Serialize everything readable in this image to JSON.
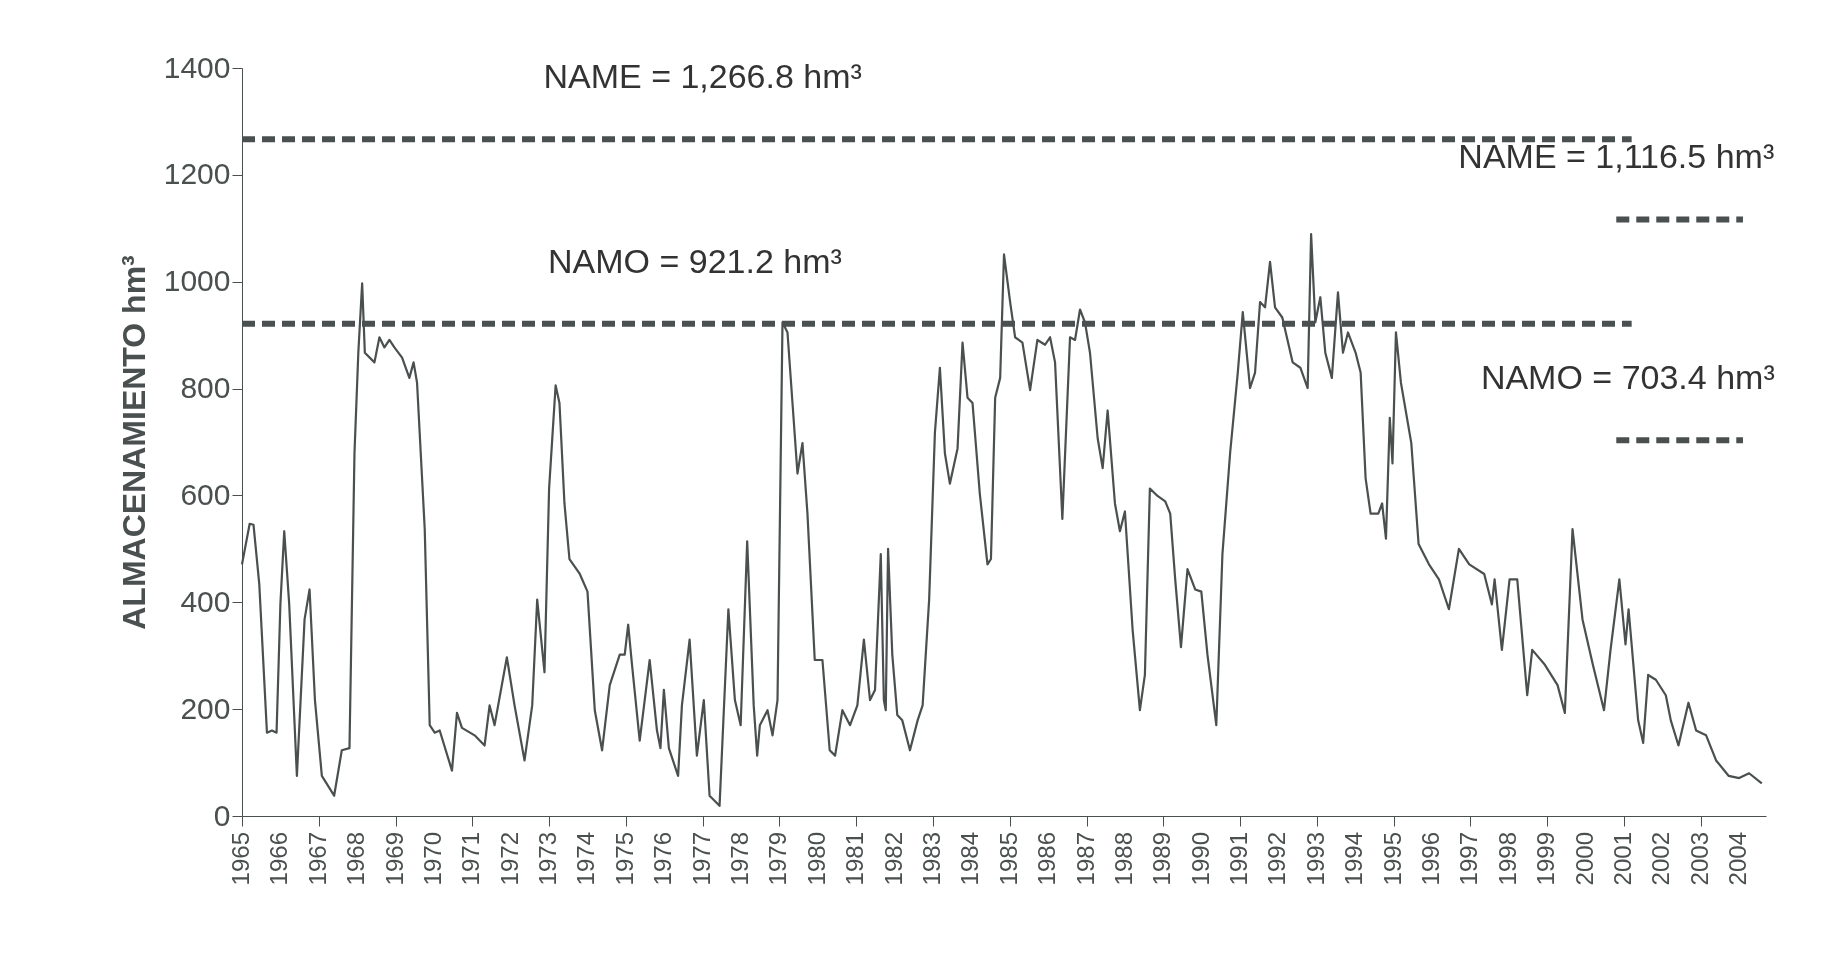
{
  "chart_data": {
    "type": "line",
    "ylabel": "ALMACENAMIENTO hm³",
    "xlim": [
      1965,
      2004.7
    ],
    "xticks": [
      1965,
      1966,
      1967,
      1968,
      1969,
      1970,
      1971,
      1972,
      1973,
      1974,
      1975,
      1976,
      1977,
      1978,
      1979,
      1980,
      1981,
      1982,
      1983,
      1984,
      1985,
      1986,
      1987,
      1988,
      1989,
      1990,
      1991,
      1992,
      1993,
      1994,
      1995,
      1996,
      1997,
      1998,
      1999,
      2000,
      2001,
      2002,
      2003,
      2004
    ],
    "ylim": [
      0,
      1400
    ],
    "yticks": [
      0,
      200,
      400,
      600,
      800,
      1000,
      1200,
      1400
    ],
    "grid": false,
    "series": [
      {
        "color": "#4a4f4f",
        "line_style": "solid",
        "x": [
          1965.0,
          1965.2,
          1965.3,
          1965.45,
          1965.65,
          1965.78,
          1965.9,
          1966.0,
          1966.1,
          1966.23,
          1966.43,
          1966.63,
          1966.76,
          1966.9,
          1967.08,
          1967.4,
          1967.6,
          1967.8,
          1967.93,
          1968.03,
          1968.13,
          1968.2,
          1968.45,
          1968.58,
          1968.71,
          1968.84,
          1968.97,
          1969.17,
          1969.36,
          1969.47,
          1969.56,
          1969.76,
          1969.89,
          1970.02,
          1970.15,
          1970.47,
          1970.6,
          1970.73,
          1971.06,
          1971.32,
          1971.45,
          1971.58,
          1971.9,
          1972.1,
          1972.36,
          1972.56,
          1972.69,
          1972.88,
          1973.0,
          1973.17,
          1973.27,
          1973.4,
          1973.53,
          1973.8,
          1974.0,
          1974.19,
          1974.38,
          1974.58,
          1974.84,
          1974.97,
          1975.06,
          1975.16,
          1975.36,
          1975.62,
          1975.81,
          1975.9,
          1975.99,
          1976.12,
          1976.36,
          1976.46,
          1976.66,
          1976.85,
          1977.03,
          1977.18,
          1977.44,
          1977.67,
          1977.84,
          1977.99,
          1978.16,
          1978.33,
          1978.42,
          1978.49,
          1978.69,
          1978.82,
          1978.95,
          1979.08,
          1979.21,
          1979.34,
          1979.47,
          1979.6,
          1979.73,
          1979.92,
          1980.12,
          1980.31,
          1980.45,
          1980.64,
          1980.84,
          1981.03,
          1981.2,
          1981.36,
          1981.49,
          1981.64,
          1981.72,
          1981.77,
          1981.83,
          1981.94,
          1982.07,
          1982.2,
          1982.4,
          1982.6,
          1982.73,
          1982.9,
          1983.05,
          1983.18,
          1983.31,
          1983.44,
          1983.64,
          1983.77,
          1983.9,
          1984.03,
          1984.22,
          1984.42,
          1984.51,
          1984.62,
          1984.75,
          1984.85,
          1985.01,
          1985.14,
          1985.33,
          1985.53,
          1985.72,
          1985.92,
          1986.05,
          1986.18,
          1986.37,
          1986.57,
          1986.7,
          1986.83,
          1986.96,
          1987.09,
          1987.29,
          1987.42,
          1987.55,
          1987.74,
          1987.87,
          1988.0,
          1988.2,
          1988.39,
          1988.52,
          1988.65,
          1988.85,
          1989.05,
          1989.18,
          1989.31,
          1989.46,
          1989.63,
          1989.83,
          1989.99,
          1990.15,
          1990.38,
          1990.54,
          1990.74,
          1990.94,
          1991.07,
          1991.26,
          1991.39,
          1991.52,
          1991.65,
          1991.78,
          1991.91,
          1992.1,
          1992.37,
          1992.57,
          1992.76,
          1992.85,
          1992.96,
          1993.09,
          1993.22,
          1993.39,
          1993.55,
          1993.68,
          1993.81,
          1994.01,
          1994.14,
          1994.27,
          1994.4,
          1994.6,
          1994.7,
          1994.8,
          1994.9,
          1994.97,
          1995.06,
          1995.19,
          1995.46,
          1995.65,
          1995.92,
          1996.18,
          1996.44,
          1996.7,
          1996.97,
          1997.36,
          1997.56,
          1997.63,
          1997.82,
          1998.02,
          1998.22,
          1998.48,
          1998.61,
          1998.94,
          1999.27,
          1999.46,
          1999.66,
          1999.92,
          2000.19,
          2000.48,
          2000.65,
          2000.88,
          2001.04,
          2001.12,
          2001.2,
          2001.37,
          2001.5,
          2001.63,
          2001.83,
          2002.09,
          2002.22,
          2002.42,
          2002.68,
          2002.88,
          2003.14,
          2003.4,
          2003.73,
          2004.0,
          2004.26,
          2004.59
        ],
        "values": [
          471,
          547,
          545,
          434,
          156,
          160,
          156,
          396,
          533,
          396,
          75,
          368,
          424,
          217,
          75,
          38,
          123,
          127,
          679,
          867,
          997,
          867,
          849,
          896,
          877,
          891,
          877,
          858,
          820,
          849,
          811,
          537,
          170,
          156,
          160,
          85,
          193,
          165,
          151,
          132,
          207,
          170,
          297,
          207,
          104,
          207,
          405,
          269,
          613,
          806,
          773,
          585,
          481,
          453,
          420,
          198,
          123,
          245,
          302,
          302,
          358,
          283,
          141,
          292,
          160,
          127,
          236,
          127,
          75,
          207,
          330,
          113,
          217,
          38,
          19,
          387,
          217,
          170,
          514,
          207,
          113,
          170,
          198,
          151,
          217,
          924,
          905,
          773,
          641,
          698,
          566,
          292,
          292,
          123,
          113,
          198,
          170,
          207,
          330,
          217,
          236,
          490,
          217,
          198,
          500,
          302,
          189,
          179,
          123,
          179,
          207,
          405,
          717,
          839,
          679,
          622,
          688,
          886,
          783,
          773,
          603,
          471,
          481,
          783,
          820,
          1051,
          962,
          896,
          886,
          797,
          891,
          882,
          896,
          849,
          556,
          896,
          891,
          948,
          924,
          867,
          707,
          651,
          759,
          585,
          533,
          570,
          349,
          198,
          264,
          613,
          599,
          589,
          566,
          443,
          316,
          462,
          424,
          420,
          302,
          170,
          490,
          679,
          830,
          943,
          801,
          830,
          962,
          952,
          1037,
          952,
          933,
          849,
          839,
          801,
          1089,
          924,
          971,
          867,
          820,
          980,
          867,
          905,
          867,
          830,
          632,
          566,
          566,
          585,
          519,
          745,
          660,
          905,
          811,
          698,
          509,
          471,
          443,
          387,
          500,
          471,
          453,
          396,
          443,
          311,
          443,
          443,
          226,
          311,
          283,
          245,
          193,
          537,
          368,
          283,
          198,
          311,
          443,
          321,
          387,
          321,
          179,
          137,
          264,
          255,
          226,
          179,
          132,
          212,
          160,
          151,
          104,
          75,
          71,
          80,
          61
        ]
      },
      {
        "color": "#4a4f4f",
        "line_style": "dashed",
        "x": [
          1965,
          2001.2
        ],
        "values": [
          1266.8,
          1266.8
        ]
      },
      {
        "color": "#4a4f4f",
        "line_style": "dashed",
        "x": [
          1965,
          2001.2
        ],
        "values": [
          921.2,
          921.2
        ]
      },
      {
        "color": "#4a4f4f",
        "line_style": "dashed",
        "x": [
          2000.8,
          2004.1
        ],
        "values": [
          1116.5,
          1116.5
        ]
      },
      {
        "color": "#4a4f4f",
        "line_style": "dashed",
        "x": [
          2000.8,
          2004.1
        ],
        "values": [
          703.4,
          703.4
        ]
      }
    ],
    "annotations": [
      {
        "text": "NAME = 1,266.8 hm³",
        "x": 1977,
        "y": 1266.8
      },
      {
        "text": "NAMO = 921.2 hm³",
        "x": 1976.8,
        "y": 921.2
      },
      {
        "text": "NAME = 1,116.5 hm³",
        "x": 2000.8,
        "y": 1116.5
      },
      {
        "text": "NAMO = 703.4 hm³",
        "x": 2001.1,
        "y": 703.4
      }
    ]
  }
}
